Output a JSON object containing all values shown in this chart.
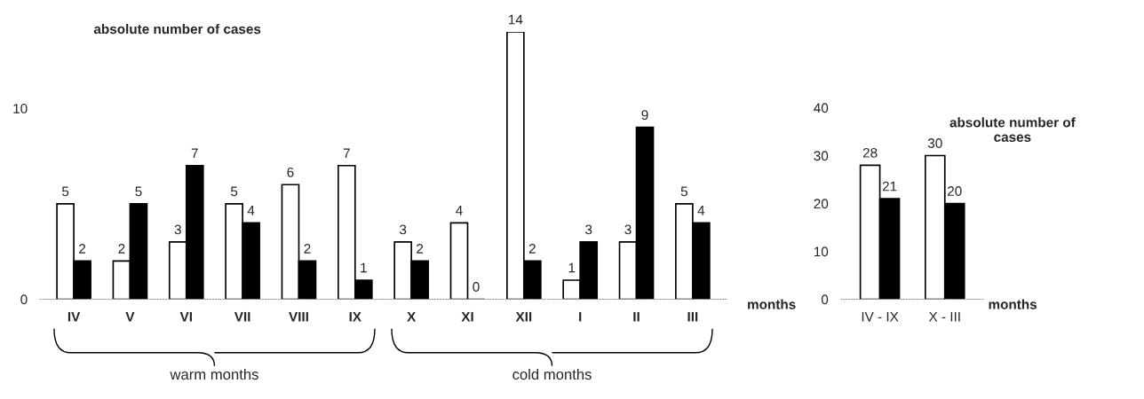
{
  "chart_data": [
    {
      "type": "bar",
      "ylabel": "absolute number of cases",
      "xlabel": "months",
      "categories": [
        "IV",
        "V",
        "VI",
        "VII",
        "VIII",
        "IX",
        "X",
        "XI",
        "XII",
        "I",
        "II",
        "III"
      ],
      "series": [
        {
          "color": "#ffffff",
          "values": [
            5,
            2,
            3,
            5,
            6,
            7,
            3,
            4,
            14,
            1,
            3,
            5
          ]
        },
        {
          "color": "#000000",
          "values": [
            2,
            5,
            7,
            4,
            2,
            1,
            2,
            0,
            2,
            3,
            9,
            4
          ]
        }
      ],
      "ylim": [
        0,
        14
      ],
      "yticks": [
        0,
        10
      ],
      "data_labels": true,
      "grid": false,
      "legend": false,
      "annotations": [
        "warm months",
        "cold months"
      ]
    },
    {
      "type": "bar",
      "ylabel": "absolute number of cases",
      "xlabel": "months",
      "categories": [
        "IV - IX",
        "X - III"
      ],
      "series": [
        {
          "color": "#ffffff",
          "values": [
            28,
            30
          ]
        },
        {
          "color": "#000000",
          "values": [
            21,
            20
          ]
        }
      ],
      "ylim": [
        0,
        40
      ],
      "yticks": [
        0,
        10,
        20,
        30,
        40
      ],
      "data_labels": true,
      "grid": false,
      "legend": false
    }
  ]
}
